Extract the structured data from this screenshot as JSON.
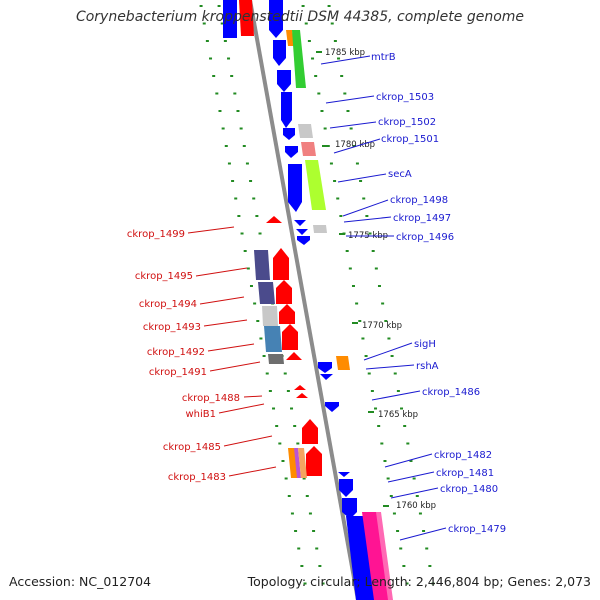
{
  "title": "Corynebacterium kroppenstedtii DSM 44385, complete genome",
  "footer": {
    "accession": "Accession: NC_012704",
    "topology": "Topology: circular; Length: 2,446,804 bp; Genes: 2,073"
  },
  "colors": {
    "forward_label": "#1a1ad0",
    "reverse_label": "#d01010",
    "backbone": "#8c8c8c",
    "forward_cds": "#0000ff",
    "reverse_cds": "#ff0000",
    "tick": "#228b22"
  },
  "kbp_markers": [
    "1785 kbp",
    "1780 kbp",
    "1775 kbp",
    "1770 kbp",
    "1765 kbp",
    "1760 kbp"
  ],
  "forward_labels": [
    "mtrB",
    "ckrop_1503",
    "ckrop_1502",
    "ckrop_1501",
    "secA",
    "ckrop_1498",
    "ckrop_1497",
    "ckrop_1496",
    "sigH",
    "rshA",
    "ckrop_1486",
    "ckrop_1482",
    "ckrop_1481",
    "ckrop_1480",
    "ckrop_1479"
  ],
  "reverse_labels": [
    "ckrop_1499",
    "ckrop_1495",
    "ckrop_1494",
    "ckrop_1493",
    "ckrop_1492",
    "ckrop_1491",
    "ckrop_1488",
    "whiB1",
    "ckrop_1485",
    "ckrop_1483"
  ]
}
